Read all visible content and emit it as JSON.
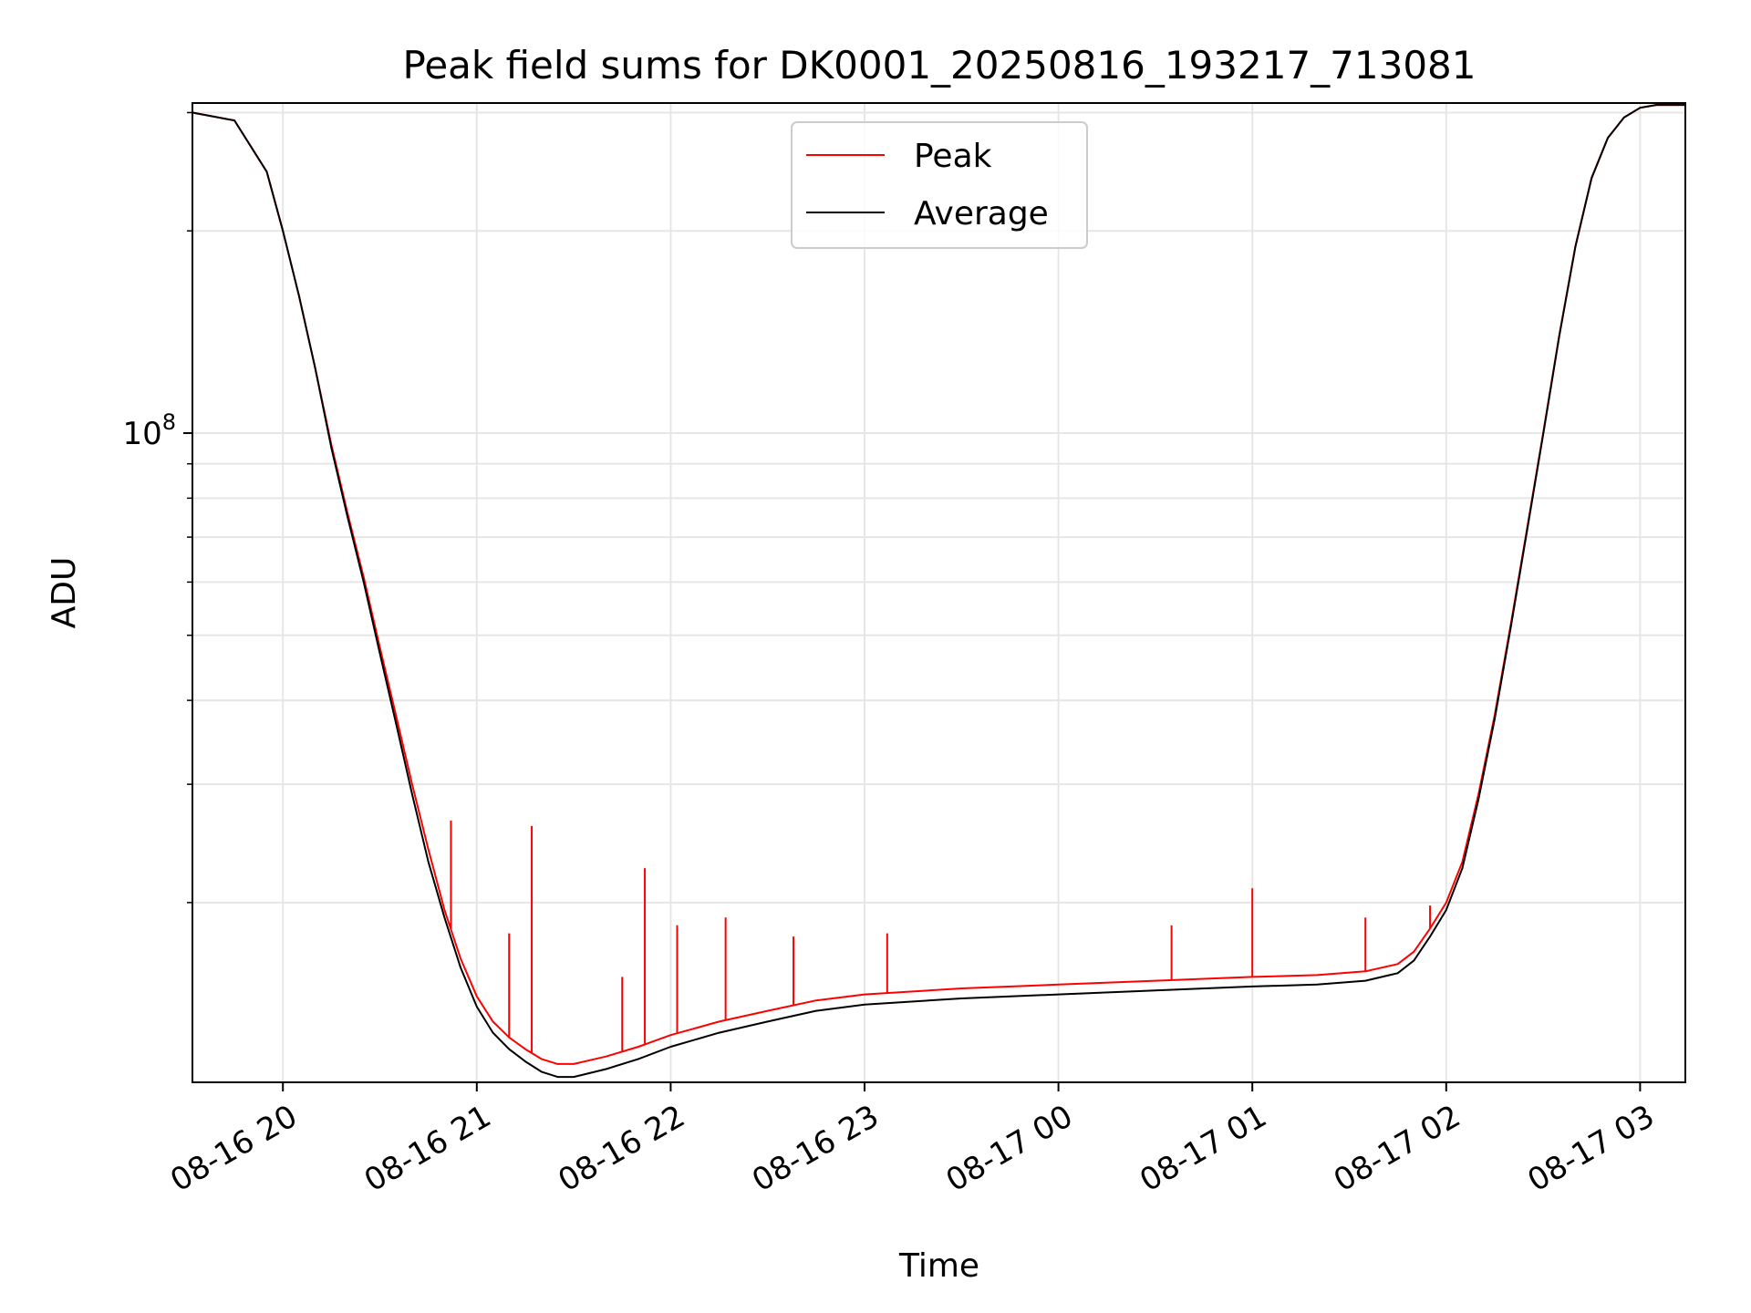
{
  "chart_data": {
    "type": "line",
    "title": "Peak field sums for DK0001_20250816_193217_713081",
    "xlabel": "Time",
    "ylabel": "ADU",
    "y_scale": "log",
    "grid": true,
    "legend_position": "top-center",
    "xlim": [
      "2025-08-16 19:32",
      "2025-08-17 03:14"
    ],
    "ylim": [
      10800000,
      310000000
    ],
    "x_ticks": [
      "2025-08-16 20:00",
      "2025-08-16 21:00",
      "2025-08-16 22:00",
      "2025-08-16 23:00",
      "2025-08-17 00:00",
      "2025-08-17 01:00",
      "2025-08-17 02:00",
      "2025-08-17 03:00"
    ],
    "x_tick_labels": [
      "08-16 20",
      "08-16 21",
      "08-16 22",
      "08-16 23",
      "08-17 00",
      "08-17 01",
      "08-17 02",
      "08-17 03"
    ],
    "y_major_tick_label": {
      "mantissa": "10",
      "exponent": "8"
    },
    "y_major_tick_value": 100000000,
    "y_minor_ticks": [
      20000000,
      30000000,
      40000000,
      50000000,
      60000000,
      70000000,
      80000000,
      90000000,
      200000000,
      300000000
    ],
    "x": [
      "2025-08-16 19:32",
      "2025-08-16 19:45",
      "2025-08-16 19:55",
      "2025-08-16 20:00",
      "2025-08-16 20:05",
      "2025-08-16 20:10",
      "2025-08-16 20:15",
      "2025-08-16 20:20",
      "2025-08-16 20:25",
      "2025-08-16 20:30",
      "2025-08-16 20:35",
      "2025-08-16 20:40",
      "2025-08-16 20:45",
      "2025-08-16 20:50",
      "2025-08-16 20:55",
      "2025-08-16 21:00",
      "2025-08-16 21:05",
      "2025-08-16 21:10",
      "2025-08-16 21:15",
      "2025-08-16 21:20",
      "2025-08-16 21:25",
      "2025-08-16 21:30",
      "2025-08-16 21:40",
      "2025-08-16 21:50",
      "2025-08-16 22:00",
      "2025-08-16 22:15",
      "2025-08-16 22:30",
      "2025-08-16 22:45",
      "2025-08-16 23:00",
      "2025-08-16 23:30",
      "2025-08-17 00:00",
      "2025-08-17 00:30",
      "2025-08-17 01:00",
      "2025-08-17 01:20",
      "2025-08-17 01:35",
      "2025-08-17 01:45",
      "2025-08-17 01:50",
      "2025-08-17 01:55",
      "2025-08-17 02:00",
      "2025-08-17 02:05",
      "2025-08-17 02:10",
      "2025-08-17 02:15",
      "2025-08-17 02:20",
      "2025-08-17 02:25",
      "2025-08-17 02:30",
      "2025-08-17 02:35",
      "2025-08-17 02:40",
      "2025-08-17 02:45",
      "2025-08-17 02:50",
      "2025-08-17 02:55",
      "2025-08-17 03:00",
      "2025-08-17 03:05",
      "2025-08-17 03:14"
    ],
    "series": [
      {
        "name": "Peak",
        "color": "#ff0000",
        "values": [
          300000000,
          292000000,
          245000000,
          200000000,
          160000000,
          125000000,
          96000000,
          76000000,
          61000000,
          48000000,
          38000000,
          30000000,
          24000000,
          19500000,
          16500000,
          14500000,
          13300000,
          12600000,
          12100000,
          11700000,
          11500000,
          11500000,
          11800000,
          12200000,
          12700000,
          13300000,
          13800000,
          14300000,
          14600000,
          14900000,
          15100000,
          15300000,
          15500000,
          15600000,
          15800000,
          16200000,
          16900000,
          18300000,
          20000000,
          23000000,
          29000000,
          38000000,
          52000000,
          72000000,
          100000000,
          140000000,
          190000000,
          240000000,
          275000000,
          295000000,
          305000000,
          308000000,
          308000000
        ]
      },
      {
        "name": "Average",
        "color": "#000000",
        "values": [
          300000000,
          292000000,
          245000000,
          200000000,
          160000000,
          125000000,
          95000000,
          75000000,
          60000000,
          47000000,
          37000000,
          29000000,
          23000000,
          19000000,
          16000000,
          14000000,
          12800000,
          12100000,
          11600000,
          11200000,
          11000000,
          11000000,
          11300000,
          11700000,
          12200000,
          12800000,
          13300000,
          13800000,
          14100000,
          14400000,
          14600000,
          14800000,
          15000000,
          15100000,
          15300000,
          15700000,
          16400000,
          17800000,
          19500000,
          22500000,
          28500000,
          37500000,
          51500000,
          71500000,
          99500000,
          139500000,
          189500000,
          239500000,
          275000000,
          295000000,
          305000000,
          308000000,
          308000000
        ]
      }
    ],
    "peak_spikes": [
      {
        "x": "2025-08-16 20:52",
        "y": 26500000
      },
      {
        "x": "2025-08-16 21:10",
        "y": 18000000
      },
      {
        "x": "2025-08-16 21:17",
        "y": 26000000
      },
      {
        "x": "2025-08-16 21:45",
        "y": 15500000
      },
      {
        "x": "2025-08-16 21:52",
        "y": 22500000
      },
      {
        "x": "2025-08-16 22:02",
        "y": 18500000
      },
      {
        "x": "2025-08-16 22:17",
        "y": 19000000
      },
      {
        "x": "2025-08-16 22:38",
        "y": 17800000
      },
      {
        "x": "2025-08-16 23:07",
        "y": 18000000
      },
      {
        "x": "2025-08-17 00:35",
        "y": 18500000
      },
      {
        "x": "2025-08-17 01:00",
        "y": 21000000
      },
      {
        "x": "2025-08-17 01:35",
        "y": 19000000
      },
      {
        "x": "2025-08-17 01:55",
        "y": 19800000
      }
    ]
  }
}
